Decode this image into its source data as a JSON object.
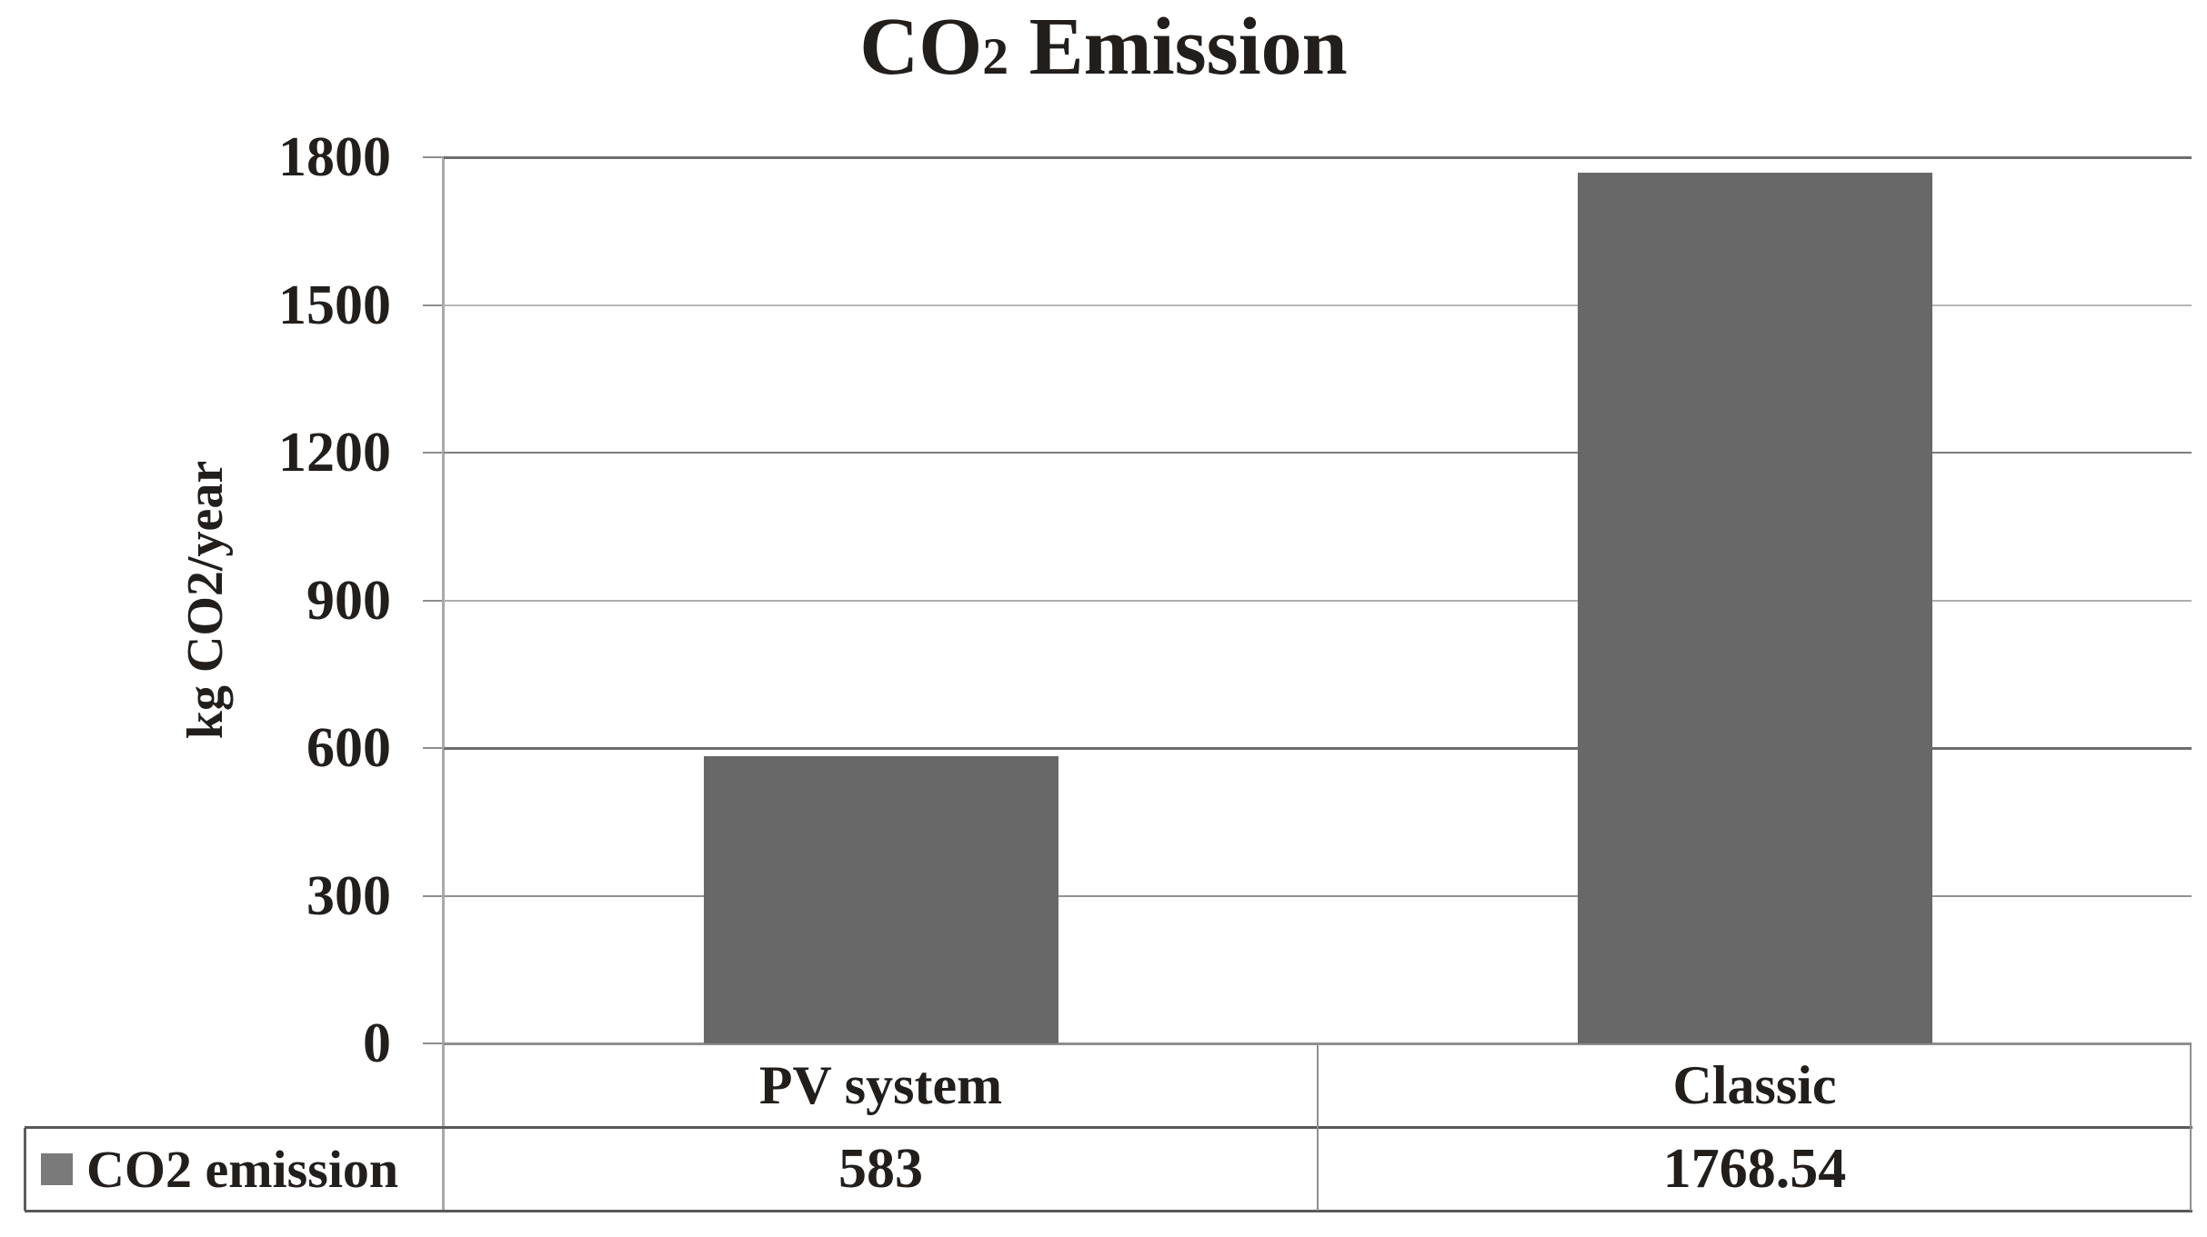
{
  "title": {
    "pre_sub": "CO",
    "sub": "2",
    "post_sub": " Emission"
  },
  "y_axis": {
    "label": "kg CO2/year",
    "tick_labels": [
      "1800",
      "1500",
      "1200",
      "900",
      "600",
      "300",
      "0"
    ]
  },
  "legend": {
    "label": "CO2 emission"
  },
  "table": {
    "value_labels": [
      "583",
      "1768.54"
    ]
  },
  "colors": {
    "bar": "#686868",
    "legend_marker": "#7a7a7a",
    "text": "#221e1c",
    "gridline_dark": "#6d6d6d",
    "gridline_light": "#b6b6b6"
  },
  "chart_data": {
    "type": "bar",
    "title": "CO2 Emission",
    "categories": [
      "PV system",
      "Classic"
    ],
    "series": [
      {
        "name": "CO2 emission",
        "values": [
          583,
          1768.54
        ]
      }
    ],
    "xlabel": "",
    "ylabel": "kg CO2/year",
    "ylim": [
      0,
      1800
    ],
    "ytick_step": 300,
    "yticks": [
      0,
      300,
      600,
      900,
      1200,
      1500,
      1800
    ],
    "grid": true,
    "legend_position": "bottom table row, left cell"
  }
}
